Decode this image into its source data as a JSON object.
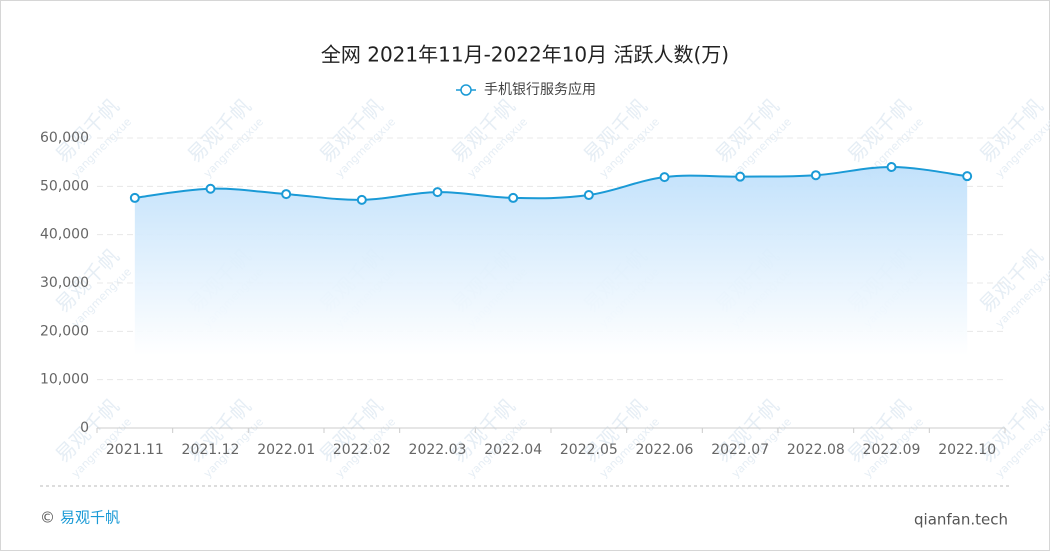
{
  "chart_data": {
    "type": "area-line",
    "title": "全网 2021年11月-2022年10月 活跃人数(万)",
    "categories": [
      "2021.11",
      "2021.12",
      "2022.01",
      "2022.02",
      "2022.03",
      "2022.04",
      "2022.05",
      "2022.06",
      "2022.07",
      "2022.08",
      "2022.09",
      "2022.10"
    ],
    "series": [
      {
        "name": "手机银行服务应用",
        "color": "#1a9ad6",
        "values": [
          47600,
          49500,
          48400,
          47200,
          48800,
          47600,
          48200,
          51900,
          52000,
          52300,
          54000,
          52100
        ]
      }
    ],
    "ylim": [
      0,
      60000
    ],
    "yticks": [
      0,
      {
        "value": 10000,
        "label": "10,000"
      },
      {
        "value": 20000,
        "label": "20,000"
      },
      {
        "value": 30000,
        "label": "30,000"
      },
      {
        "value": 40000,
        "label": "40,000"
      },
      {
        "value": 50000,
        "label": "50,000"
      },
      {
        "value": 60000,
        "label": "60,000"
      }
    ],
    "grid": true,
    "legend": "top"
  },
  "watermark": {
    "brand": "易观千帆",
    "user": "yangmengxue"
  },
  "footer": {
    "copyright": "©",
    "brand": "易观千帆",
    "site": "qianfan.tech"
  }
}
